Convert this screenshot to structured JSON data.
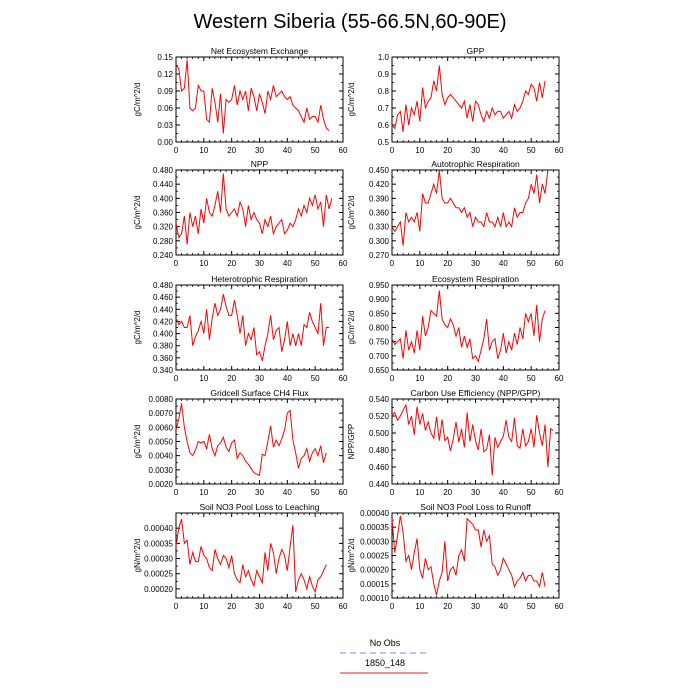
{
  "page": {
    "title": "Western Siberia (55-66.5N,60-90E)"
  },
  "legend": [
    {
      "label": "No Obs",
      "color": "#9a9af5",
      "dashed": true
    },
    {
      "label": "1850_148",
      "color": "#e05050",
      "dashed": false
    }
  ],
  "colors": {
    "series": "#ff0000",
    "axis": "#000000"
  },
  "chart_data": [
    {
      "type": "line",
      "title": "Net Ecosystem Exchange",
      "ylabel": "gC/m^2/d",
      "xlim": [
        0,
        60
      ],
      "xticks": [
        0,
        10,
        20,
        30,
        40,
        50,
        60
      ],
      "ylim": [
        0,
        0.15
      ],
      "yticks": [
        "0.00",
        "0.03",
        "0.06",
        "0.09",
        "0.12",
        "0.15"
      ],
      "x_start": 0,
      "values": [
        0.135,
        0.13,
        0.09,
        0.095,
        0.145,
        0.06,
        0.055,
        0.06,
        0.1,
        0.09,
        0.09,
        0.04,
        0.035,
        0.095,
        0.07,
        0.035,
        0.085,
        0.015,
        0.075,
        0.07,
        0.075,
        0.1,
        0.065,
        0.09,
        0.075,
        0.09,
        0.055,
        0.095,
        0.08,
        0.055,
        0.085,
        0.07,
        0.05,
        0.09,
        0.075,
        0.1,
        0.08,
        0.085,
        0.09,
        0.08,
        0.075,
        0.08,
        0.065,
        0.06,
        0.055,
        0.045,
        0.035,
        0.06,
        0.04,
        0.045,
        0.045,
        0.035,
        0.065,
        0.04,
        0.025,
        0.02
      ]
    },
    {
      "type": "line",
      "title": "GPP",
      "ylabel": "gC/m^2/d",
      "xlim": [
        0,
        60
      ],
      "xticks": [
        0,
        10,
        20,
        30,
        40,
        50,
        60
      ],
      "ylim": [
        0.5,
        1.0
      ],
      "yticks": [
        "0.5",
        "0.6",
        "0.7",
        "0.8",
        "0.9",
        "1.0"
      ],
      "x_start": 0,
      "values": [
        0.6,
        0.58,
        0.66,
        0.68,
        0.56,
        0.72,
        0.6,
        0.7,
        0.66,
        0.74,
        0.62,
        0.82,
        0.7,
        0.74,
        0.76,
        0.86,
        0.8,
        0.95,
        0.78,
        0.72,
        0.76,
        0.78,
        0.76,
        0.74,
        0.72,
        0.7,
        0.74,
        0.64,
        0.72,
        0.62,
        0.74,
        0.72,
        0.66,
        0.62,
        0.68,
        0.64,
        0.7,
        0.66,
        0.68,
        0.68,
        0.64,
        0.66,
        0.68,
        0.64,
        0.72,
        0.68,
        0.7,
        0.74,
        0.8,
        0.78,
        0.84,
        0.82,
        0.74,
        0.85,
        0.76,
        0.86
      ]
    },
    {
      "type": "line",
      "title": "NPP",
      "ylabel": "gC/m^2/d",
      "xlim": [
        0,
        60
      ],
      "xticks": [
        0,
        10,
        20,
        30,
        40,
        50,
        60
      ],
      "ylim": [
        0.24,
        0.48
      ],
      "yticks": [
        "0.240",
        "0.280",
        "0.320",
        "0.360",
        "0.400",
        "0.440",
        "0.480"
      ],
      "x_start": 0,
      "values": [
        0.33,
        0.29,
        0.3,
        0.35,
        0.27,
        0.36,
        0.32,
        0.35,
        0.3,
        0.37,
        0.33,
        0.4,
        0.36,
        0.35,
        0.38,
        0.42,
        0.36,
        0.47,
        0.37,
        0.35,
        0.36,
        0.37,
        0.35,
        0.39,
        0.37,
        0.32,
        0.38,
        0.34,
        0.36,
        0.34,
        0.33,
        0.3,
        0.34,
        0.32,
        0.35,
        0.3,
        0.32,
        0.33,
        0.34,
        0.3,
        0.31,
        0.33,
        0.32,
        0.34,
        0.37,
        0.35,
        0.38,
        0.36,
        0.4,
        0.38,
        0.41,
        0.37,
        0.39,
        0.32,
        0.41,
        0.37,
        0.4
      ]
    },
    {
      "type": "line",
      "title": "Autotrophic Respiration",
      "ylabel": "gC/m^2/d",
      "xlim": [
        0,
        60
      ],
      "xticks": [
        0,
        10,
        20,
        30,
        40,
        50,
        60
      ],
      "ylim": [
        0.27,
        0.45
      ],
      "yticks": [
        "0.270",
        "0.300",
        "0.330",
        "0.360",
        "0.390",
        "0.420",
        "0.450"
      ],
      "x_start": 0,
      "values": [
        0.33,
        0.32,
        0.33,
        0.34,
        0.29,
        0.36,
        0.34,
        0.35,
        0.34,
        0.36,
        0.32,
        0.4,
        0.38,
        0.38,
        0.4,
        0.42,
        0.4,
        0.47,
        0.39,
        0.38,
        0.38,
        0.39,
        0.38,
        0.37,
        0.37,
        0.36,
        0.37,
        0.35,
        0.36,
        0.33,
        0.35,
        0.34,
        0.34,
        0.33,
        0.36,
        0.34,
        0.34,
        0.33,
        0.35,
        0.33,
        0.36,
        0.33,
        0.34,
        0.33,
        0.37,
        0.35,
        0.36,
        0.36,
        0.38,
        0.39,
        0.42,
        0.4,
        0.44,
        0.38,
        0.42,
        0.4,
        0.45
      ]
    },
    {
      "type": "line",
      "title": "Heterotrophic Respiration",
      "ylabel": "gC/m^2/d",
      "xlim": [
        0,
        60
      ],
      "xticks": [
        0,
        10,
        20,
        30,
        40,
        50,
        60
      ],
      "ylim": [
        0.34,
        0.48
      ],
      "yticks": [
        "0.340",
        "0.360",
        "0.380",
        "0.400",
        "0.420",
        "0.440",
        "0.460",
        "0.480"
      ],
      "x_start": 0,
      "values": [
        0.425,
        0.415,
        0.42,
        0.41,
        0.41,
        0.43,
        0.38,
        0.395,
        0.405,
        0.42,
        0.4,
        0.44,
        0.39,
        0.425,
        0.45,
        0.43,
        0.44,
        0.465,
        0.445,
        0.43,
        0.43,
        0.455,
        0.43,
        0.4,
        0.43,
        0.38,
        0.4,
        0.39,
        0.41,
        0.365,
        0.37,
        0.355,
        0.38,
        0.4,
        0.43,
        0.39,
        0.405,
        0.41,
        0.37,
        0.39,
        0.42,
        0.38,
        0.4,
        0.38,
        0.4,
        0.38,
        0.415,
        0.41,
        0.435,
        0.42,
        0.41,
        0.4,
        0.45,
        0.38,
        0.41,
        0.41
      ]
    },
    {
      "type": "line",
      "title": "Ecosystem Respiration",
      "ylabel": "gC/m^2/d",
      "xlim": [
        0,
        60
      ],
      "xticks": [
        0,
        10,
        20,
        30,
        40,
        50,
        60
      ],
      "ylim": [
        0.65,
        0.95
      ],
      "yticks": [
        "0.650",
        "0.700",
        "0.750",
        "0.800",
        "0.850",
        "0.900",
        "0.950"
      ],
      "x_start": 0,
      "values": [
        0.76,
        0.74,
        0.75,
        0.76,
        0.69,
        0.79,
        0.72,
        0.75,
        0.71,
        0.79,
        0.72,
        0.84,
        0.77,
        0.8,
        0.86,
        0.85,
        0.84,
        0.93,
        0.83,
        0.81,
        0.8,
        0.83,
        0.81,
        0.77,
        0.8,
        0.73,
        0.77,
        0.73,
        0.76,
        0.69,
        0.7,
        0.68,
        0.72,
        0.76,
        0.83,
        0.72,
        0.75,
        0.76,
        0.69,
        0.72,
        0.78,
        0.71,
        0.75,
        0.72,
        0.78,
        0.74,
        0.8,
        0.76,
        0.85,
        0.82,
        0.85,
        0.77,
        0.88,
        0.75,
        0.83,
        0.86
      ]
    },
    {
      "type": "line",
      "title": "Gridcell Surface CH4 Flux",
      "ylabel": "gC/m^2/d",
      "xlim": [
        0,
        60
      ],
      "xticks": [
        0,
        10,
        20,
        30,
        40,
        50,
        60
      ],
      "ylim": [
        0.002,
        0.008
      ],
      "yticks": [
        "0.0020",
        "0.0030",
        "0.0040",
        "0.0050",
        "0.0060",
        "0.0070",
        "0.0080"
      ],
      "x_start": 0,
      "values": [
        0.0058,
        0.0066,
        0.0077,
        0.006,
        0.005,
        0.0042,
        0.004,
        0.0044,
        0.005,
        0.0049,
        0.005,
        0.0045,
        0.0055,
        0.0045,
        0.004,
        0.0047,
        0.0049,
        0.0053,
        0.0046,
        0.0043,
        0.0049,
        0.0051,
        0.0038,
        0.0042,
        0.004,
        0.0036,
        0.0034,
        0.0031,
        0.0028,
        0.0027,
        0.0026,
        0.0041,
        0.004,
        0.005,
        0.0061,
        0.0046,
        0.0051,
        0.0047,
        0.0052,
        0.0058,
        0.007,
        0.0072,
        0.0051,
        0.0042,
        0.0031,
        0.0038,
        0.004,
        0.0045,
        0.0036,
        0.0042,
        0.0045,
        0.004,
        0.0047,
        0.0035,
        0.0042
      ]
    },
    {
      "type": "line",
      "title": "Carbon Use Efficiency (NPP/GPP)",
      "ylabel": "NPP/GPP",
      "xlim": [
        0,
        60
      ],
      "xticks": [
        0,
        10,
        20,
        30,
        40,
        50,
        60
      ],
      "ylim": [
        0.44,
        0.54
      ],
      "yticks": [
        "0.440",
        "0.460",
        "0.480",
        "0.500",
        "0.520",
        "0.540"
      ],
      "x_start": 0,
      "values": [
        0.521,
        0.524,
        0.515,
        0.52,
        0.527,
        0.533,
        0.51,
        0.52,
        0.498,
        0.531,
        0.51,
        0.523,
        0.503,
        0.513,
        0.5,
        0.494,
        0.519,
        0.491,
        0.516,
        0.491,
        0.495,
        0.479,
        0.493,
        0.513,
        0.489,
        0.505,
        0.483,
        0.524,
        0.49,
        0.51,
        0.491,
        0.48,
        0.505,
        0.478,
        0.481,
        0.498,
        0.45,
        0.495,
        0.483,
        0.49,
        0.496,
        0.515,
        0.495,
        0.49,
        0.518,
        0.485,
        0.482,
        0.505,
        0.485,
        0.49,
        0.505,
        0.483,
        0.521,
        0.5,
        0.485,
        0.51,
        0.46,
        0.505,
        0.503
      ]
    },
    {
      "type": "line",
      "title": "Soil NO3 Pool Loss to Leaching",
      "ylabel": "gN/m^2/d",
      "xlim": [
        0,
        60
      ],
      "xticks": [
        0,
        10,
        20,
        30,
        40,
        50,
        60
      ],
      "ylim": [
        0.00017,
        0.00045
      ],
      "yticks": [
        "0.00020",
        "0.00025",
        "0.00030",
        "0.00035",
        "0.00040"
      ],
      "x_start": 0,
      "values": [
        0.00034,
        0.0004,
        0.00043,
        0.00035,
        0.00036,
        0.00028,
        0.00032,
        0.00029,
        0.00029,
        0.00034,
        0.00031,
        0.0003,
        0.00027,
        0.00026,
        0.00033,
        0.0003,
        0.00028,
        0.00031,
        0.0003,
        0.00027,
        0.00031,
        0.00025,
        0.00023,
        0.00022,
        0.00028,
        0.00024,
        0.00026,
        0.00023,
        0.00021,
        0.00026,
        0.00024,
        0.00022,
        0.00032,
        0.00026,
        0.00035,
        0.00032,
        0.00025,
        0.0003,
        0.00033,
        0.00031,
        0.00026,
        0.00034,
        0.00041,
        0.00019,
        0.00023,
        0.00025,
        0.00023,
        0.0002,
        0.00024,
        0.00021,
        0.00019,
        0.00023,
        0.00024,
        0.00026,
        0.00028
      ]
    },
    {
      "type": "line",
      "title": "Soil NO3 Pool Loss to Runoff",
      "ylabel": "gN/m^2/d",
      "xlim": [
        0,
        60
      ],
      "xticks": [
        0,
        10,
        20,
        30,
        40,
        50,
        60
      ],
      "ylim": [
        0.0001,
        0.0004
      ],
      "yticks": [
        "0.00010",
        "0.00015",
        "0.00020",
        "0.00025",
        "0.00030",
        "0.00035",
        "0.00040"
      ],
      "x_start": 0,
      "values": [
        0.00038,
        0.00026,
        0.00032,
        0.00039,
        0.00033,
        0.00023,
        0.00025,
        0.0002,
        0.00026,
        0.00031,
        0.0002,
        0.00017,
        0.00024,
        0.0002,
        0.00021,
        0.00015,
        0.00011,
        0.00016,
        0.00019,
        0.0003,
        0.00016,
        0.0002,
        0.00021,
        0.00018,
        0.00025,
        0.00027,
        0.00023,
        0.00038,
        0.00037,
        0.00036,
        0.00034,
        0.00034,
        0.00028,
        0.00034,
        0.0003,
        0.00032,
        0.00022,
        0.00021,
        0.00018,
        0.0002,
        0.00024,
        0.00022,
        0.0002,
        0.00018,
        0.00014,
        0.00016,
        0.00017,
        0.00019,
        0.00016,
        0.00018,
        0.00018,
        0.00016,
        0.00016,
        0.00014,
        0.00019,
        0.00014
      ]
    }
  ]
}
